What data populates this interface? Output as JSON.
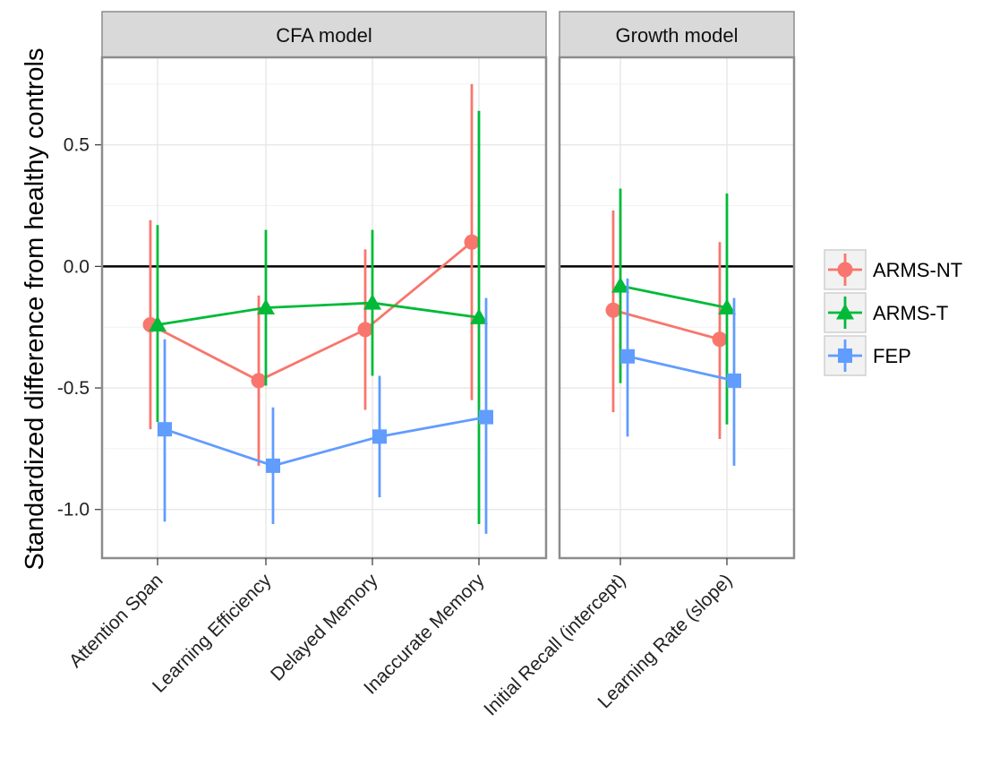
{
  "chart_data": {
    "type": "line",
    "ylabel": "Standardized difference from healthy controls",
    "ylim": [
      -1.2,
      0.86
    ],
    "yticks": [
      0.5,
      0.0,
      -0.5,
      -1.0
    ],
    "ytick_labels": [
      "0.5",
      "0.0",
      "-0.5",
      "-1.0"
    ],
    "reference_line": 0,
    "grid": true,
    "legend_position": "right",
    "series_colors": {
      "ARMS-NT": "#F8766D",
      "ARMS-T": "#00BA38",
      "FEP": "#619CFF"
    },
    "series_markers": {
      "ARMS-NT": "circle",
      "ARMS-T": "triangle",
      "FEP": "square"
    },
    "legend": [
      "ARMS-NT",
      "ARMS-T",
      "FEP"
    ],
    "panels": [
      {
        "title": "CFA model",
        "categories": [
          "Attention Span",
          "Learning Efficiency",
          "Delayed Memory",
          "Inaccurate Memory"
        ],
        "series": [
          {
            "name": "ARMS-NT",
            "values": [
              -0.24,
              -0.47,
              -0.26,
              0.1
            ],
            "lower": [
              -0.67,
              -0.82,
              -0.59,
              -0.55
            ],
            "upper": [
              0.19,
              -0.12,
              0.07,
              0.75
            ]
          },
          {
            "name": "ARMS-T",
            "values": [
              -0.24,
              -0.17,
              -0.15,
              -0.21
            ],
            "lower": [
              -0.64,
              -0.49,
              -0.45,
              -1.06
            ],
            "upper": [
              0.17,
              0.15,
              0.15,
              0.64
            ]
          },
          {
            "name": "FEP",
            "values": [
              -0.67,
              -0.82,
              -0.7,
              -0.62
            ],
            "lower": [
              -1.05,
              -1.06,
              -0.95,
              -1.1
            ],
            "upper": [
              -0.3,
              -0.58,
              -0.45,
              -0.13
            ]
          }
        ]
      },
      {
        "title": "Growth model",
        "categories": [
          "Initial Recall (intercept)",
          "Learning Rate (slope)"
        ],
        "series": [
          {
            "name": "ARMS-NT",
            "values": [
              -0.18,
              -0.3
            ],
            "lower": [
              -0.6,
              -0.71
            ],
            "upper": [
              0.23,
              0.1
            ]
          },
          {
            "name": "ARMS-T",
            "values": [
              -0.08,
              -0.17
            ],
            "lower": [
              -0.48,
              -0.65
            ],
            "upper": [
              0.32,
              0.3
            ]
          },
          {
            "name": "FEP",
            "values": [
              -0.37,
              -0.47
            ],
            "lower": [
              -0.7,
              -0.82
            ],
            "upper": [
              -0.05,
              -0.13
            ]
          }
        ]
      }
    ]
  }
}
